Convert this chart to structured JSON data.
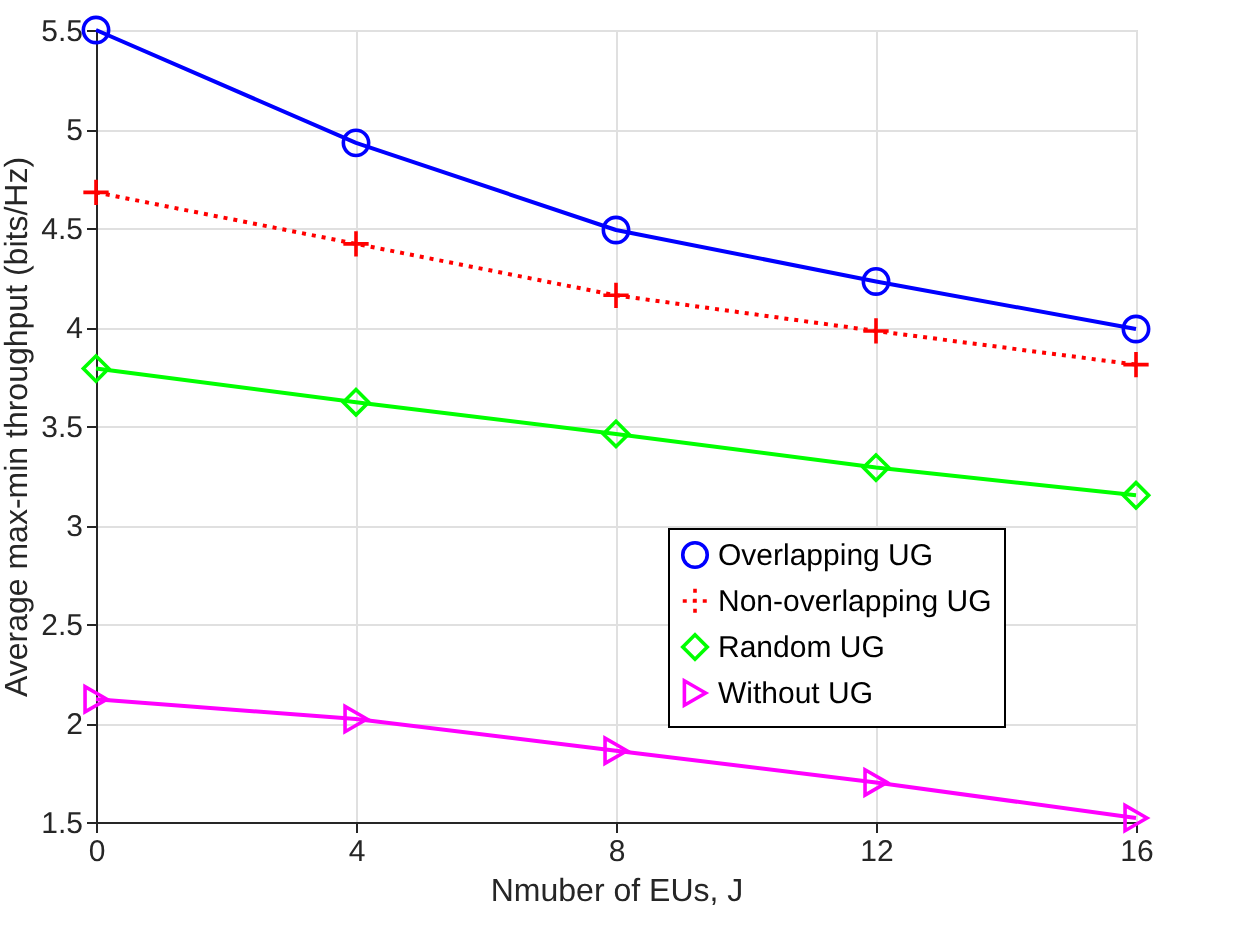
{
  "chart_data": {
    "type": "line",
    "xlabel": "Nmuber of EUs, J",
    "ylabel": "Average max-min throughput (bits/Hz)",
    "x": [
      0,
      4,
      8,
      12,
      16
    ],
    "xlim": [
      0,
      16
    ],
    "xticks": [
      0,
      4,
      8,
      12,
      16
    ],
    "ylim": [
      1.5,
      5.5
    ],
    "yticks": [
      1.5,
      2,
      2.5,
      3,
      3.5,
      4,
      4.5,
      5,
      5.5
    ],
    "grid": true,
    "legend": "bottom right",
    "series": [
      {
        "name": "Overlapping UG",
        "color": "#0000ff",
        "marker": "circle",
        "line_style": "solid",
        "values": [
          5.5,
          4.93,
          4.49,
          4.23,
          3.99
        ]
      },
      {
        "name": "Non-overlapping UG",
        "color": "#ff0000",
        "marker": "cross",
        "line_style": "dotted",
        "values": [
          4.68,
          4.42,
          4.16,
          3.98,
          3.81
        ]
      },
      {
        "name": "Random UG",
        "color": "#00ff00",
        "marker": "diamond",
        "line_style": "solid",
        "values": [
          3.79,
          3.62,
          3.46,
          3.29,
          3.15
        ]
      },
      {
        "name": "Without UG",
        "color": "#ff00ff",
        "marker": "triangle",
        "line_style": "solid",
        "values": [
          2.12,
          2.02,
          1.86,
          1.7,
          1.52
        ]
      }
    ]
  }
}
